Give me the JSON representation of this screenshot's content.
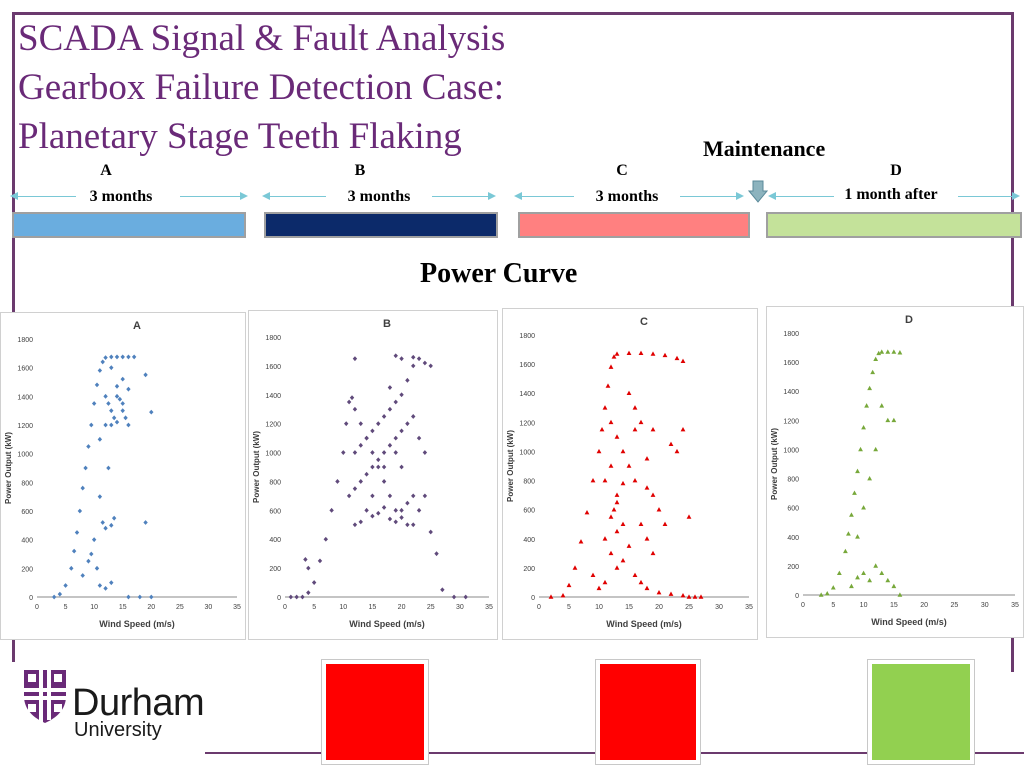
{
  "title_lines": [
    "SCADA Signal & Fault Analysis",
    "Gearbox Failure Detection Case:",
    "Planetary Stage Teeth Flaking"
  ],
  "maintenance_label": "Maintenance",
  "phases": [
    {
      "letter": "A",
      "duration": "3 months",
      "color": "#6aaddf"
    },
    {
      "letter": "B",
      "duration": "3 months",
      "color": "#0c2a6a"
    },
    {
      "letter": "C",
      "duration": "3 months",
      "color": "#ff8080"
    },
    {
      "letter": "D",
      "duration": "1 month after",
      "color": "#c4e29a"
    }
  ],
  "power_curve_title": "Power Curve",
  "status_colors": [
    "#ff0000",
    "#ff0000",
    "#92d050"
  ],
  "logo": {
    "name": "Durham",
    "sub": "University",
    "crest_color": "#6a2a78"
  },
  "chart_data": [
    {
      "type": "scatter",
      "title": "A",
      "xlabel": "Wind Speed (m/s)",
      "ylabel": "Power Output (kW)",
      "xlim": [
        0,
        35
      ],
      "ylim": [
        0,
        1800
      ],
      "xticks": [
        0,
        5,
        10,
        15,
        20,
        25,
        30,
        35
      ],
      "yticks": [
        0,
        200,
        400,
        600,
        800,
        1000,
        1200,
        1400,
        1600,
        1800
      ],
      "color": "#4f81bd",
      "marker": "diamond",
      "points": [
        [
          3,
          0
        ],
        [
          4,
          20
        ],
        [
          5,
          80
        ],
        [
          6,
          200
        ],
        [
          6.5,
          320
        ],
        [
          7,
          450
        ],
        [
          7.5,
          600
        ],
        [
          8,
          760
        ],
        [
          8.5,
          900
        ],
        [
          9,
          1050
        ],
        [
          9.5,
          1200
        ],
        [
          10,
          1350
        ],
        [
          10.5,
          1480
        ],
        [
          11,
          1580
        ],
        [
          11.5,
          1640
        ],
        [
          12,
          1670
        ],
        [
          13,
          1675
        ],
        [
          14,
          1675
        ],
        [
          15,
          1675
        ],
        [
          16,
          1675
        ],
        [
          17,
          1675
        ],
        [
          12,
          1400
        ],
        [
          12.5,
          1350
        ],
        [
          13,
          1300
        ],
        [
          13.5,
          1250
        ],
        [
          14,
          1400
        ],
        [
          14.5,
          1380
        ],
        [
          15,
          1300
        ],
        [
          15.5,
          1250
        ],
        [
          16,
          1200
        ],
        [
          13,
          1200
        ],
        [
          14,
          1220
        ],
        [
          15,
          1350
        ],
        [
          16,
          1450
        ],
        [
          12,
          1200
        ],
        [
          11,
          1100
        ],
        [
          12.5,
          900
        ],
        [
          13,
          500
        ],
        [
          13.5,
          550
        ],
        [
          12,
          480
        ],
        [
          11.5,
          520
        ],
        [
          10,
          400
        ],
        [
          9.5,
          300
        ],
        [
          8,
          150
        ],
        [
          10.5,
          200
        ],
        [
          11,
          80
        ],
        [
          12,
          60
        ],
        [
          13,
          100
        ],
        [
          19,
          520
        ],
        [
          20,
          1290
        ],
        [
          16,
          0
        ],
        [
          18,
          0
        ],
        [
          20,
          0
        ],
        [
          19,
          1550
        ],
        [
          14,
          1470
        ],
        [
          15,
          1520
        ],
        [
          13,
          1600
        ],
        [
          11,
          700
        ],
        [
          9,
          250
        ]
      ]
    },
    {
      "type": "scatter",
      "title": "B",
      "xlabel": "Wind Speed (m/s)",
      "ylabel": "Power Output (kW)",
      "xlim": [
        0,
        35
      ],
      "ylim": [
        0,
        1800
      ],
      "xticks": [
        0,
        5,
        10,
        15,
        20,
        25,
        30,
        35
      ],
      "yticks": [
        0,
        200,
        400,
        600,
        800,
        1000,
        1200,
        1400,
        1600,
        1800
      ],
      "color": "#604a7b",
      "marker": "diamond",
      "points": [
        [
          3,
          0
        ],
        [
          4,
          30
        ],
        [
          5,
          100
        ],
        [
          6,
          250
        ],
        [
          7,
          400
        ],
        [
          8,
          600
        ],
        [
          9,
          800
        ],
        [
          10,
          1000
        ],
        [
          10.5,
          1200
        ],
        [
          11,
          1350
        ],
        [
          11.5,
          1380
        ],
        [
          12,
          1300
        ],
        [
          13,
          1200
        ],
        [
          14,
          1100
        ],
        [
          15,
          1000
        ],
        [
          16,
          900
        ],
        [
          17,
          800
        ],
        [
          18,
          700
        ],
        [
          19,
          600
        ],
        [
          20,
          550
        ],
        [
          21,
          500
        ],
        [
          12,
          500
        ],
        [
          13,
          520
        ],
        [
          14,
          600
        ],
        [
          15,
          560
        ],
        [
          16,
          580
        ],
        [
          17,
          620
        ],
        [
          18,
          540
        ],
        [
          19,
          520
        ],
        [
          20,
          600
        ],
        [
          21,
          650
        ],
        [
          22,
          700
        ],
        [
          13,
          800
        ],
        [
          14,
          850
        ],
        [
          15,
          900
        ],
        [
          16,
          950
        ],
        [
          17,
          1000
        ],
        [
          18,
          1050
        ],
        [
          19,
          1100
        ],
        [
          20,
          1150
        ],
        [
          21,
          1200
        ],
        [
          22,
          1250
        ],
        [
          12,
          1000
        ],
        [
          13,
          1050
        ],
        [
          14,
          1100
        ],
        [
          15,
          1150
        ],
        [
          16,
          1200
        ],
        [
          17,
          1250
        ],
        [
          18,
          1300
        ],
        [
          19,
          1350
        ],
        [
          20,
          1400
        ],
        [
          21,
          1500
        ],
        [
          22,
          1600
        ],
        [
          23,
          1650
        ],
        [
          24,
          1620
        ],
        [
          25,
          1600
        ],
        [
          11,
          700
        ],
        [
          12,
          750
        ],
        [
          15,
          700
        ],
        [
          17,
          900
        ],
        [
          19,
          1000
        ],
        [
          20,
          900
        ],
        [
          23,
          1100
        ],
        [
          24,
          1000
        ],
        [
          24,
          700
        ],
        [
          23,
          600
        ],
        [
          22,
          500
        ],
        [
          25,
          450
        ],
        [
          26,
          300
        ],
        [
          27,
          50
        ],
        [
          29,
          0
        ],
        [
          31,
          0
        ],
        [
          2,
          0
        ],
        [
          1,
          0
        ],
        [
          4,
          200
        ],
        [
          3.5,
          260
        ],
        [
          20,
          1650
        ],
        [
          19,
          1670
        ],
        [
          22,
          1660
        ],
        [
          18,
          1450
        ],
        [
          12,
          1650
        ]
      ]
    },
    {
      "type": "scatter",
      "title": "C",
      "xlabel": "Wind Speed (m/s)",
      "ylabel": "Power Output (kW)",
      "xlim": [
        0,
        35
      ],
      "ylim": [
        0,
        1800
      ],
      "xticks": [
        0,
        5,
        10,
        15,
        20,
        25,
        30,
        35
      ],
      "yticks": [
        0,
        200,
        400,
        600,
        800,
        1000,
        1200,
        1400,
        1600,
        1800
      ],
      "color": "#e00000",
      "marker": "triangle",
      "points": [
        [
          2,
          0
        ],
        [
          4,
          10
        ],
        [
          5,
          80
        ],
        [
          6,
          200
        ],
        [
          7,
          380
        ],
        [
          8,
          580
        ],
        [
          9,
          800
        ],
        [
          10,
          1000
        ],
        [
          10.5,
          1150
        ],
        [
          11,
          1300
        ],
        [
          11.5,
          1450
        ],
        [
          12,
          1580
        ],
        [
          12.5,
          1650
        ],
        [
          13,
          1670
        ],
        [
          15,
          1675
        ],
        [
          17,
          1675
        ],
        [
          19,
          1670
        ],
        [
          21,
          1660
        ],
        [
          23,
          1640
        ],
        [
          24,
          1620
        ],
        [
          12,
          1200
        ],
        [
          13,
          1100
        ],
        [
          12,
          900
        ],
        [
          11,
          800
        ],
        [
          13,
          700
        ],
        [
          12.5,
          600
        ],
        [
          12,
          550
        ],
        [
          11,
          400
        ],
        [
          13,
          450
        ],
        [
          14,
          500
        ],
        [
          15,
          1400
        ],
        [
          16,
          1300
        ],
        [
          17,
          1200
        ],
        [
          14,
          1000
        ],
        [
          15,
          900
        ],
        [
          16,
          800
        ],
        [
          18,
          750
        ],
        [
          19,
          700
        ],
        [
          20,
          600
        ],
        [
          17,
          500
        ],
        [
          18,
          400
        ],
        [
          19,
          300
        ],
        [
          15,
          350
        ],
        [
          14,
          250
        ],
        [
          13,
          200
        ],
        [
          16,
          150
        ],
        [
          17,
          100
        ],
        [
          18,
          60
        ],
        [
          20,
          30
        ],
        [
          22,
          20
        ],
        [
          24,
          10
        ],
        [
          25,
          0
        ],
        [
          26,
          0
        ],
        [
          27,
          0
        ],
        [
          22,
          1050
        ],
        [
          23,
          1000
        ],
        [
          24,
          1150
        ],
        [
          25,
          550
        ],
        [
          21,
          500
        ],
        [
          11,
          100
        ],
        [
          10,
          60
        ],
        [
          9,
          150
        ],
        [
          12,
          300
        ],
        [
          13,
          650
        ],
        [
          14,
          780
        ],
        [
          16,
          1150
        ],
        [
          18,
          950
        ],
        [
          19,
          1150
        ]
      ]
    },
    {
      "type": "scatter",
      "title": "D",
      "xlabel": "Wind Speed (m/s)",
      "ylabel": "Power Output (kW)",
      "xlim": [
        0,
        35
      ],
      "ylim": [
        0,
        1800
      ],
      "xticks": [
        0,
        5,
        10,
        15,
        20,
        25,
        30,
        35
      ],
      "yticks": [
        0,
        200,
        400,
        600,
        800,
        1000,
        1200,
        1400,
        1600,
        1800
      ],
      "color": "#77a83a",
      "marker": "triangle",
      "points": [
        [
          3,
          0
        ],
        [
          4,
          10
        ],
        [
          5,
          50
        ],
        [
          6,
          150
        ],
        [
          7,
          300
        ],
        [
          7.5,
          420
        ],
        [
          8,
          550
        ],
        [
          8.5,
          700
        ],
        [
          9,
          850
        ],
        [
          9.5,
          1000
        ],
        [
          10,
          1150
        ],
        [
          10.5,
          1300
        ],
        [
          11,
          1420
        ],
        [
          11.5,
          1530
        ],
        [
          12,
          1620
        ],
        [
          12.5,
          1660
        ],
        [
          13,
          1670
        ],
        [
          14,
          1670
        ],
        [
          15,
          1670
        ],
        [
          16,
          1665
        ],
        [
          9,
          400
        ],
        [
          10,
          600
        ],
        [
          11,
          800
        ],
        [
          12,
          1000
        ],
        [
          13,
          1300
        ],
        [
          14,
          1200
        ],
        [
          15,
          1200
        ],
        [
          12,
          200
        ],
        [
          13,
          150
        ],
        [
          14,
          100
        ],
        [
          15,
          60
        ],
        [
          16,
          0
        ],
        [
          10,
          150
        ],
        [
          11,
          100
        ],
        [
          9,
          120
        ],
        [
          8,
          60
        ]
      ]
    }
  ]
}
